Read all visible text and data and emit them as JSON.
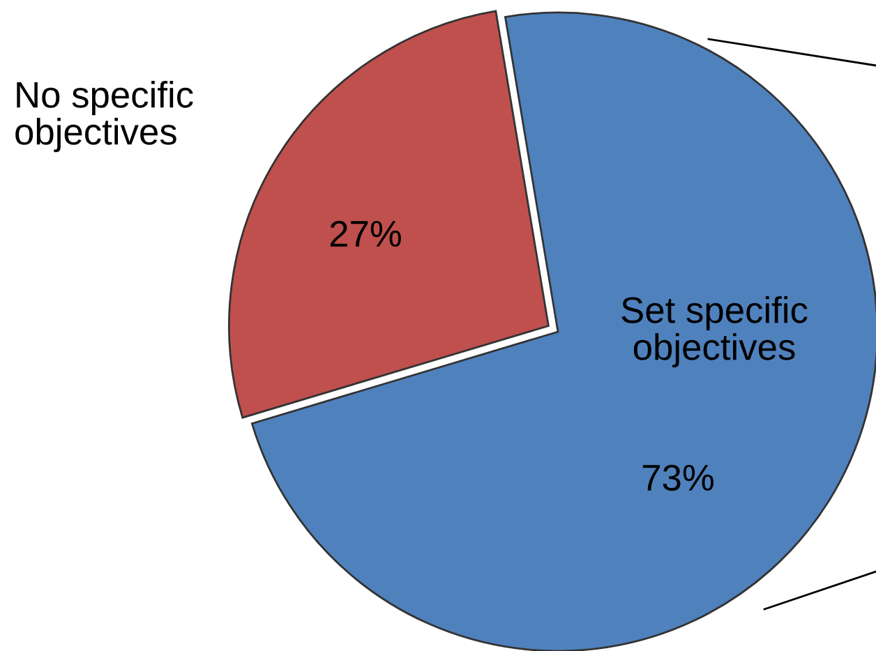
{
  "chart_data": {
    "type": "pie",
    "categories": [
      "No specific objectives",
      "Set specific objectives"
    ],
    "values": [
      27,
      73
    ],
    "colors": [
      "#c0504d",
      "#4f81bd"
    ],
    "value_labels": [
      "27%",
      "73%"
    ]
  }
}
